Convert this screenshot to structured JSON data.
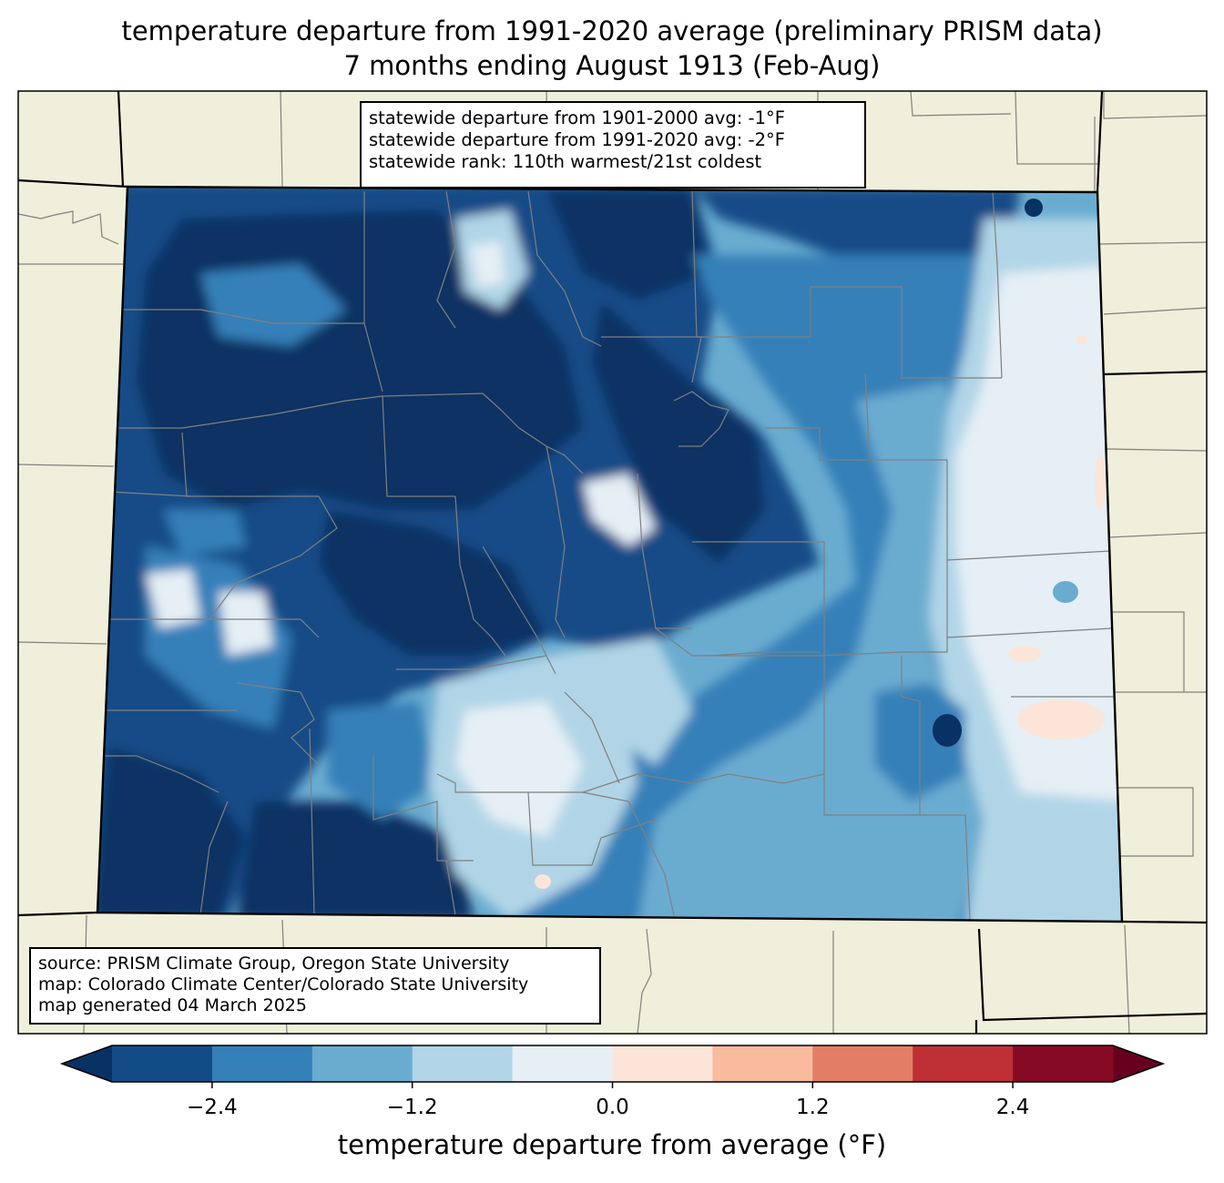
{
  "title": {
    "line1": "temperature departure from 1991-2020 average (preliminary PRISM data)",
    "line2": "7 months ending August 1913 (Feb-Aug)"
  },
  "stats": {
    "line1": "statewide departure from 1901-2000 avg: -1°F",
    "line2": "statewide departure from 1991-2020 avg: -2°F",
    "line3": "statewide rank: 110th warmest/21st coldest"
  },
  "source": {
    "line1": "source: PRISM Climate Group, Oregon State University",
    "line2": "map: Colorado Climate Center/Colorado State University",
    "line3": "map generated 04 March 2025"
  },
  "colorbar": {
    "title": "temperature departure from average (°F)",
    "bins": [
      -3.0,
      -2.4,
      -1.8,
      -1.2,
      -0.6,
      0.0,
      0.6,
      1.2,
      1.8,
      2.4,
      3.0
    ],
    "colors": [
      "#134b87",
      "#3480b9",
      "#6aacd0",
      "#b1d5e7",
      "#e5eff5",
      "#fbe5d8",
      "#f8bb9e",
      "#e27e65",
      "#be3036",
      "#870a24"
    ],
    "under_color": "#0a3163",
    "over_color": "#67001f",
    "ticks": [
      {
        "value": -2.4,
        "label": "−2.4"
      },
      {
        "value": -1.2,
        "label": "−1.2"
      },
      {
        "value": 0.0,
        "label": "0.0"
      },
      {
        "value": 1.2,
        "label": "1.2"
      },
      {
        "value": 2.4,
        "label": "2.4"
      }
    ]
  },
  "map_colors": {
    "land": "#efefdb",
    "county_line": "#808080",
    "state_line": "#000000"
  }
}
